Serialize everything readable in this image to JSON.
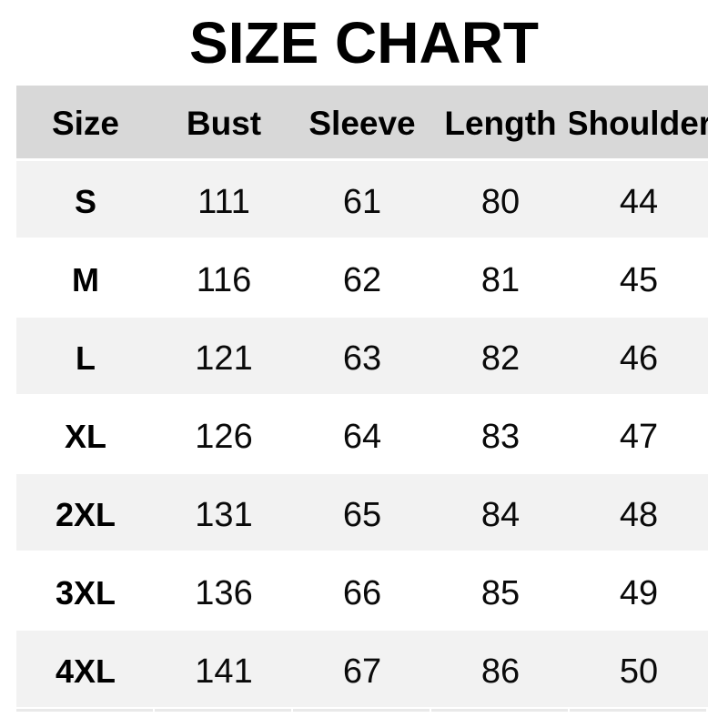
{
  "page_title": "SIZE CHART",
  "size_table": {
    "headers": [
      "Size",
      "Bust",
      "Sleeve",
      "Length",
      "Shoulder"
    ],
    "rows": [
      [
        "S",
        "111",
        "61",
        "80",
        "44"
      ],
      [
        "M",
        "116",
        "62",
        "81",
        "45"
      ],
      [
        "L",
        "121",
        "63",
        "82",
        "46"
      ],
      [
        "XL",
        "126",
        "64",
        "83",
        "47"
      ],
      [
        "2XL",
        "131",
        "65",
        "84",
        "48"
      ],
      [
        "3XL",
        "136",
        "66",
        "85",
        "49"
      ],
      [
        "4XL",
        "141",
        "67",
        "86",
        "50"
      ]
    ]
  },
  "colors": {
    "header_bg": "#d8d8d8",
    "row_alt_bg": "#f2f2f2",
    "row_bg": "#ffffff",
    "title_text": "#000000",
    "cell_text": "#0a0a0a",
    "page_bg": "#ffffff"
  },
  "chart_data": {
    "type": "table",
    "title": "SIZE CHART",
    "columns": [
      "Size",
      "Bust",
      "Sleeve",
      "Length",
      "Shoulder"
    ],
    "rows": [
      {
        "Size": "S",
        "Bust": 111,
        "Sleeve": 61,
        "Length": 80,
        "Shoulder": 44
      },
      {
        "Size": "M",
        "Bust": 116,
        "Sleeve": 62,
        "Length": 81,
        "Shoulder": 45
      },
      {
        "Size": "L",
        "Bust": 121,
        "Sleeve": 63,
        "Length": 82,
        "Shoulder": 46
      },
      {
        "Size": "XL",
        "Bust": 126,
        "Sleeve": 64,
        "Length": 83,
        "Shoulder": 47
      },
      {
        "Size": "2XL",
        "Bust": 131,
        "Sleeve": 65,
        "Length": 84,
        "Shoulder": 48
      },
      {
        "Size": "3XL",
        "Bust": 136,
        "Sleeve": 66,
        "Length": 85,
        "Shoulder": 49
      },
      {
        "Size": "4XL",
        "Bust": 141,
        "Sleeve": 67,
        "Length": 86,
        "Shoulder": 50
      }
    ],
    "layout": {
      "header_row_shaded": true,
      "alternating_rows": "shaded,white starting shaded",
      "gridlines": false
    }
  }
}
